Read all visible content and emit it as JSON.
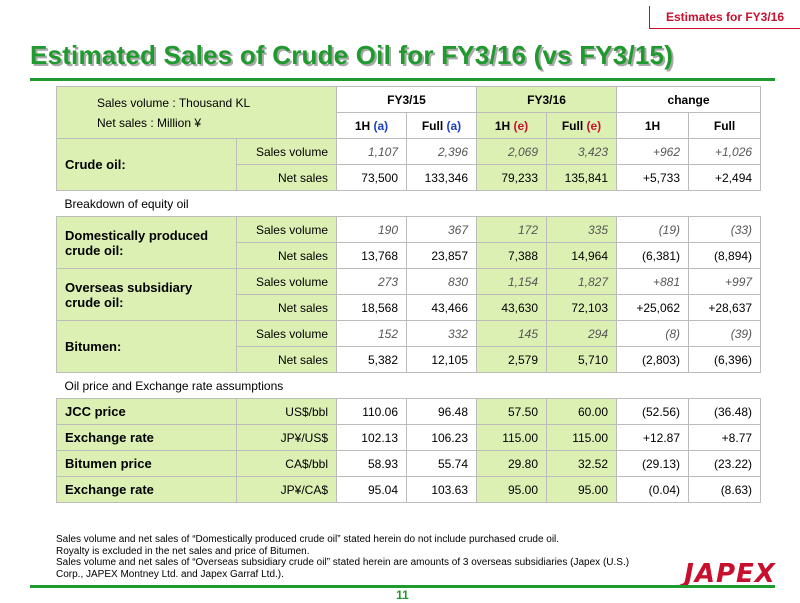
{
  "header": {
    "tag": "Estimates for FY3/16",
    "title": "Estimated Sales of Crude Oil for FY3/16 (vs FY3/15)"
  },
  "table": {
    "legend1": "Sales volume : Thousand KL",
    "legend2": "Net sales : Million ¥",
    "groups": {
      "fy15": "FY3/15",
      "fy16": "FY3/16",
      "change": "change"
    },
    "cols": {
      "c1a": "1H",
      "c1b": "(a)",
      "c2a": "Full",
      "c2b": "(a)",
      "c3a": "1H",
      "c3b": "(e)",
      "c4a": "Full",
      "c4b": "(e)",
      "c5": "1H",
      "c6": "Full"
    },
    "crude": {
      "label": "Crude oil:",
      "vol_label": "Sales volume",
      "vol": [
        "1,107",
        "2,396",
        "2,069",
        "3,423",
        "+962",
        "+1,026"
      ],
      "sales_label": "Net sales",
      "sales": [
        "73,500",
        "133,346",
        "79,233",
        "135,841",
        "+5,733",
        "+2,494"
      ]
    },
    "breakdown_label": "Breakdown of equity oil",
    "domestic": {
      "label": "Domestically produced crude oil:",
      "vol_label": "Sales volume",
      "vol": [
        "190",
        "367",
        "172",
        "335",
        "(19)",
        "(33)"
      ],
      "sales_label": "Net sales",
      "sales": [
        "13,768",
        "23,857",
        "7,388",
        "14,964",
        "(6,381)",
        "(8,894)"
      ]
    },
    "overseas": {
      "label": "Overseas subsidiary crude oil:",
      "vol_label": "Sales volume",
      "vol": [
        "273",
        "830",
        "1,154",
        "1,827",
        "+881",
        "+997"
      ],
      "sales_label": "Net sales",
      "sales": [
        "18,568",
        "43,466",
        "43,630",
        "72,103",
        "+25,062",
        "+28,637"
      ]
    },
    "bitumen": {
      "label": "Bitumen:",
      "vol_label": "Sales volume",
      "vol": [
        "152",
        "332",
        "145",
        "294",
        "(8)",
        "(39)"
      ],
      "sales_label": "Net sales",
      "sales": [
        "5,382",
        "12,105",
        "2,579",
        "5,710",
        "(2,803)",
        "(6,396)"
      ]
    },
    "assumptions_label": "Oil price and Exchange rate assumptions",
    "jcc": {
      "label": "JCC price",
      "unit": "US$/bbl",
      "values": [
        "110.06",
        "96.48",
        "57.50",
        "60.00",
        "(52.56)",
        "(36.48)"
      ]
    },
    "fx1": {
      "label": "Exchange rate",
      "unit": "JP¥/US$",
      "values": [
        "102.13",
        "106.23",
        "115.00",
        "115.00",
        "+12.87",
        "+8.77"
      ]
    },
    "bit_price": {
      "label": "Bitumen price",
      "unit": "CA$/bbl",
      "values": [
        "58.93",
        "55.74",
        "29.80",
        "32.52",
        "(29.13)",
        "(23.22)"
      ]
    },
    "fx2": {
      "label": "Exchange rate",
      "unit": "JP¥/CA$",
      "values": [
        "95.04",
        "103.63",
        "95.00",
        "95.00",
        "(0.04)",
        "(8.63)"
      ]
    }
  },
  "notes": [
    "Sales volume and net sales of “Domestically produced crude oil” stated herein do not include purchased crude oil.",
    "Royalty is excluded in the net sales and price of Bitumen.",
    "Sales volume and net sales of “Overseas subsidiary crude oil” stated herein are amounts of 3 overseas subsidiaries (Japex (U.S.) Corp., JAPEX Montney Ltd. and Japex Garraf Ltd.)."
  ],
  "footer": {
    "page": "11",
    "logo": "JAPEX"
  },
  "colors": {
    "brand_green": "#1f9a2e",
    "brand_red": "#c8102e",
    "cell_green": "#ddf0b4"
  }
}
